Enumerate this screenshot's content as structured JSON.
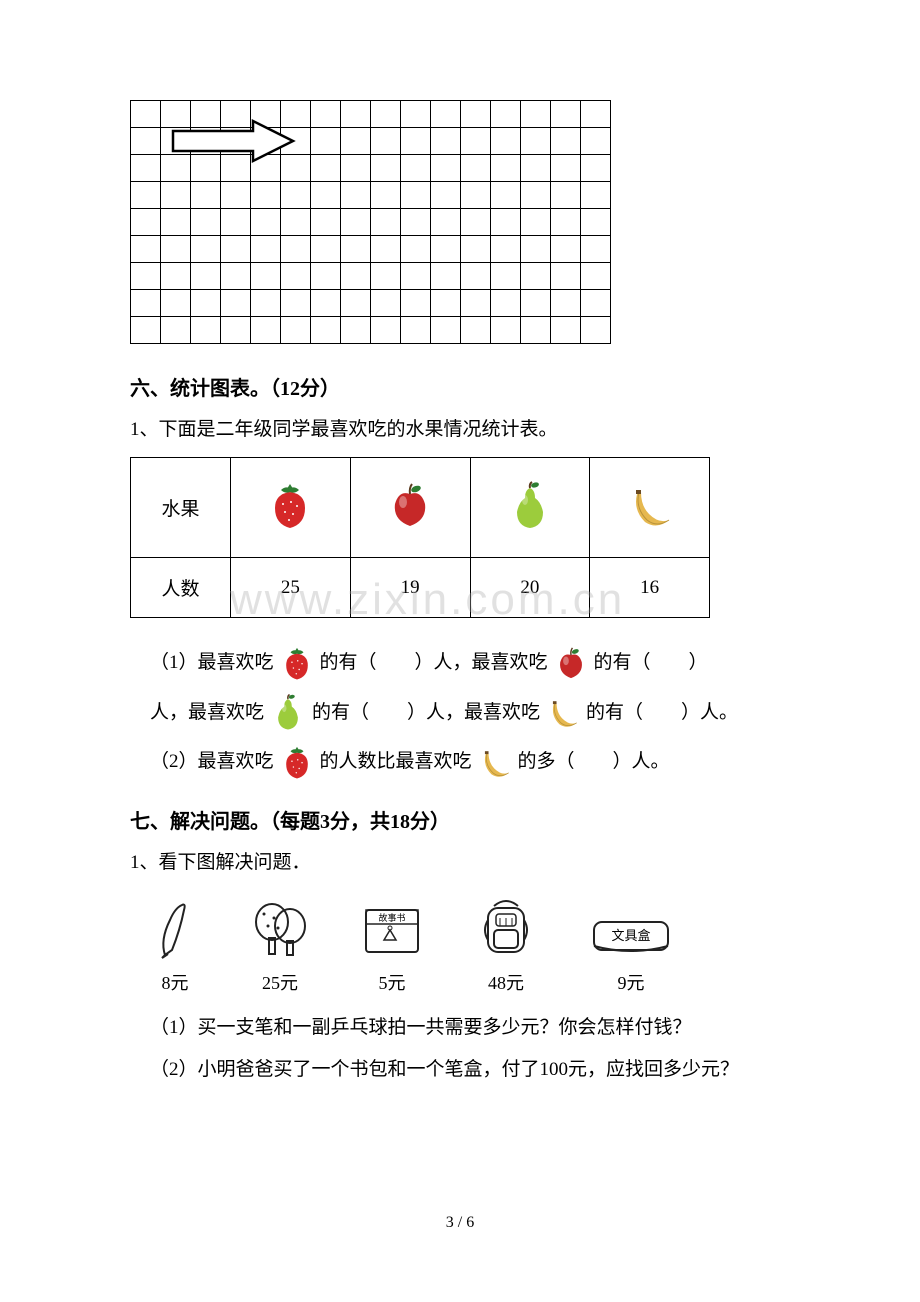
{
  "grid": {
    "rows": 9,
    "cols": 16
  },
  "section6": {
    "heading": "六、统计图表。（12分）",
    "intro": "1、下面是二年级同学最喜欢吃的水果情况统计表。",
    "table": {
      "row_label": "水果",
      "count_label": "人数",
      "fruits": [
        {
          "name": "strawberry",
          "count": "25"
        },
        {
          "name": "apple",
          "count": "19"
        },
        {
          "name": "pear",
          "count": "20"
        },
        {
          "name": "banana",
          "count": "16"
        }
      ]
    },
    "q1_parts": {
      "a": "（1）最喜欢吃",
      "b": "的有（　　）人，最喜欢吃",
      "c": "的有（　　）",
      "d": "人，最喜欢吃",
      "e": "的有（　　）人，最喜欢吃",
      "f": "的有（　　）人。"
    },
    "q2_parts": {
      "a": "（2）最喜欢吃",
      "b": "的人数比最喜欢吃",
      "c": "的多（　　）人。"
    }
  },
  "section7": {
    "heading": "七、解决问题。（每题3分，共18分）",
    "intro": "1、看下图解决问题．",
    "items": [
      {
        "name": "pen",
        "price": "8元"
      },
      {
        "name": "paddles",
        "price": "25元"
      },
      {
        "name": "book",
        "price": "5元",
        "label": "故事书"
      },
      {
        "name": "backpack",
        "price": "48元"
      },
      {
        "name": "pencilcase",
        "price": "9元",
        "label": "文具盒"
      }
    ],
    "q1": "（1）买一支笔和一副乒乓球拍一共需要多少元？你会怎样付钱？",
    "q2": "（2）小明爸爸买了一个书包和一个笔盒，付了100元，应找回多少元？"
  },
  "watermark": "www.zixin.com.cn",
  "page": "3 / 6",
  "colors": {
    "strawberry_body": "#d62828",
    "strawberry_leaf": "#2e7d32",
    "apple_body": "#c62828",
    "apple_leaf": "#2e7d32",
    "pear_body": "#9ccc3c",
    "banana_body": "#e6b84f",
    "line_art": "#222222"
  }
}
